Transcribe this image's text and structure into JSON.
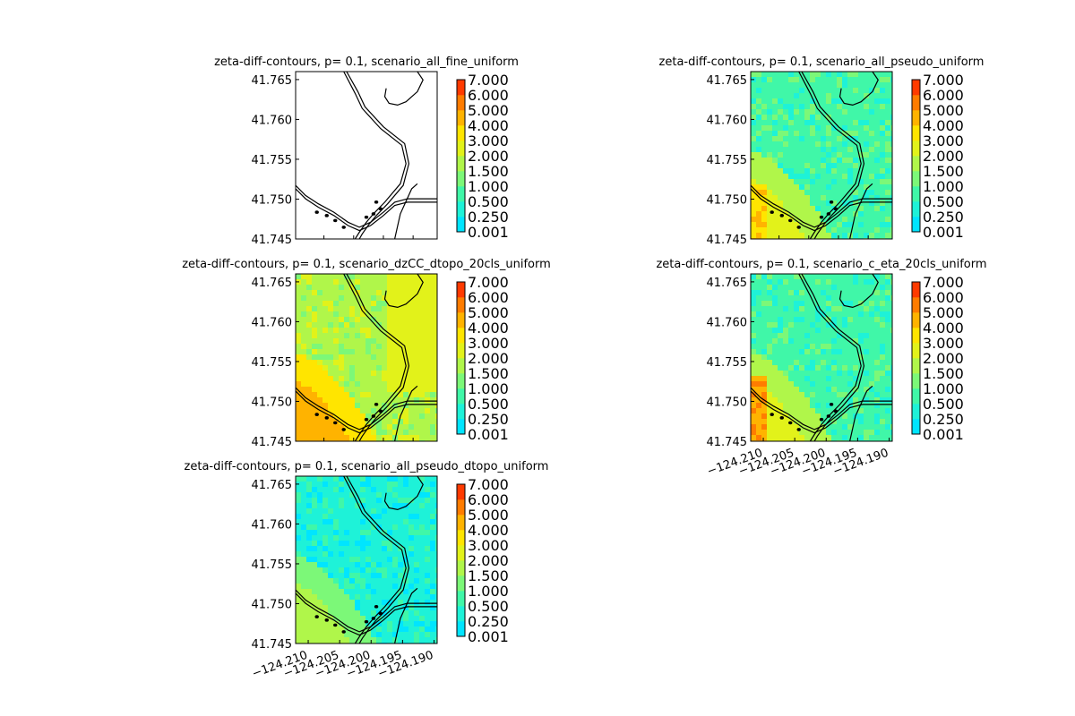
{
  "figure": {
    "background": "#ffffff"
  },
  "chart_data": [
    {
      "type": "heatmap",
      "title": "zeta-diff-contours, p= 0.1, scenario_all_fine_uniform",
      "xlim": [
        -124.212,
        -124.1895
      ],
      "ylim": [
        41.745,
        41.766
      ],
      "yticks": [
        "41.765",
        "41.760",
        "41.755",
        "41.750",
        "41.745"
      ],
      "ytick_values": [
        41.765,
        41.76,
        41.755,
        41.75,
        41.745
      ],
      "xticks": [],
      "fill": "empty",
      "dominant_level": "",
      "colorbar": {
        "levels": [
          "0.001",
          "0.250",
          "0.500",
          "1.000",
          "1.500",
          "2.000",
          "3.000",
          "4.000",
          "5.000",
          "6.000",
          "7.000"
        ],
        "colors": [
          "#00e5ff",
          "#1ef2d8",
          "#40f7a8",
          "#7cf878",
          "#b0f64a",
          "#e2f21a",
          "#ffe500",
          "#ffb300",
          "#ff7c00",
          "#ff3a00",
          "#e60000"
        ]
      }
    },
    {
      "type": "heatmap",
      "title": "zeta-diff-contours, p= 0.1, scenario_all_pseudo_uniform",
      "xlim": [
        -124.212,
        -124.1895
      ],
      "ylim": [
        41.745,
        41.766
      ],
      "yticks": [
        "41.765",
        "41.760",
        "41.755",
        "41.750",
        "41.745"
      ],
      "ytick_values": [
        41.765,
        41.76,
        41.755,
        41.75,
        41.745
      ],
      "xticks": [],
      "fill": "mixed",
      "dominant_level": "0.500",
      "colorbar": {
        "levels": [
          "0.001",
          "0.250",
          "0.500",
          "1.000",
          "1.500",
          "2.000",
          "3.000",
          "4.000",
          "5.000",
          "6.000",
          "7.000"
        ],
        "colors": [
          "#00e5ff",
          "#1ef2d8",
          "#40f7a8",
          "#7cf878",
          "#b0f64a",
          "#e2f21a",
          "#ffe500",
          "#ffb300",
          "#ff7c00",
          "#ff3a00",
          "#e60000"
        ]
      }
    },
    {
      "type": "heatmap",
      "title": "zeta-diff-contours, p= 0.1, scenario_dzCC_dtopo_20cls_uniform",
      "xlim": [
        -124.212,
        -124.1895
      ],
      "ylim": [
        41.745,
        41.766
      ],
      "yticks": [
        "41.765",
        "41.760",
        "41.755",
        "41.750",
        "41.745"
      ],
      "ytick_values": [
        41.765,
        41.76,
        41.755,
        41.75,
        41.745
      ],
      "xticks": [],
      "fill": "mixed",
      "dominant_level": "1.500",
      "colorbar": {
        "levels": [
          "0.001",
          "0.250",
          "0.500",
          "1.000",
          "1.500",
          "2.000",
          "3.000",
          "4.000",
          "5.000",
          "6.000",
          "7.000"
        ],
        "colors": [
          "#00e5ff",
          "#1ef2d8",
          "#40f7a8",
          "#7cf878",
          "#b0f64a",
          "#e2f21a",
          "#ffe500",
          "#ffb300",
          "#ff7c00",
          "#ff3a00",
          "#e60000"
        ]
      }
    },
    {
      "type": "heatmap",
      "title": "zeta-diff-contours, p= 0.1, scenario_c_eta_20cls_uniform",
      "xlim": [
        -124.212,
        -124.1895
      ],
      "ylim": [
        41.745,
        41.766
      ],
      "yticks": [
        "41.765",
        "41.760",
        "41.755",
        "41.750",
        "41.745"
      ],
      "ytick_values": [
        41.765,
        41.76,
        41.755,
        41.75,
        41.745
      ],
      "xticks": [
        "−124.210",
        "−124.205",
        "−124.200",
        "−124.195",
        "−124.190"
      ],
      "xtick_values": [
        -124.21,
        -124.205,
        -124.2,
        -124.195,
        -124.19
      ],
      "fill": "mixed",
      "dominant_level": "0.500",
      "colorbar": {
        "levels": [
          "0.001",
          "0.250",
          "0.500",
          "1.000",
          "1.500",
          "2.000",
          "3.000",
          "4.000",
          "5.000",
          "6.000",
          "7.000"
        ],
        "colors": [
          "#00e5ff",
          "#1ef2d8",
          "#40f7a8",
          "#7cf878",
          "#b0f64a",
          "#e2f21a",
          "#ffe500",
          "#ffb300",
          "#ff7c00",
          "#ff3a00",
          "#e60000"
        ]
      }
    },
    {
      "type": "heatmap",
      "title": "zeta-diff-contours, p= 0.1, scenario_all_pseudo_dtopo_uniform",
      "xlim": [
        -124.212,
        -124.1895
      ],
      "ylim": [
        41.745,
        41.766
      ],
      "yticks": [
        "41.765",
        "41.760",
        "41.755",
        "41.750",
        "41.745"
      ],
      "ytick_values": [
        41.765,
        41.76,
        41.755,
        41.75,
        41.745
      ],
      "xticks": [
        "−124.210",
        "−124.205",
        "−124.200",
        "−124.195",
        "−124.190"
      ],
      "xtick_values": [
        -124.21,
        -124.205,
        -124.2,
        -124.195,
        -124.19
      ],
      "fill": "mixed",
      "dominant_level": "0.250",
      "colorbar": {
        "levels": [
          "0.001",
          "0.250",
          "0.500",
          "1.000",
          "1.500",
          "2.000",
          "3.000",
          "4.000",
          "5.000",
          "6.000",
          "7.000"
        ],
        "colors": [
          "#00e5ff",
          "#1ef2d8",
          "#40f7a8",
          "#7cf878",
          "#b0f64a",
          "#e2f21a",
          "#ffe500",
          "#ffb300",
          "#ff7c00",
          "#ff3a00",
          "#e60000"
        ]
      }
    }
  ]
}
